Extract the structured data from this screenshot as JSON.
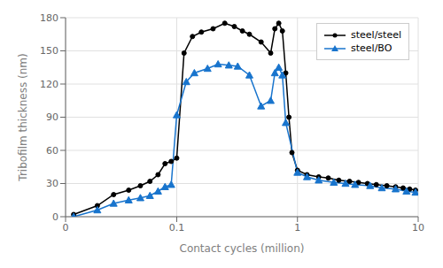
{
  "chart_data": {
    "type": "line",
    "xlabel": "Contact cycles (million)",
    "ylabel": "Tribofilm thickness (nm)",
    "log": "x",
    "grid": true,
    "legend": "upper right",
    "xlim": [
      0.012,
      10
    ],
    "ylim": [
      0,
      180
    ],
    "xticks": [
      {
        "value": 0.012,
        "label": "0"
      },
      0.1,
      1,
      10
    ],
    "yticks": [
      0,
      30,
      60,
      90,
      120,
      150,
      180
    ],
    "series": [
      {
        "name": "steel/steel",
        "color": "#000000",
        "marker": "circle",
        "x": [
          0.014,
          0.022,
          0.03,
          0.04,
          0.05,
          0.06,
          0.07,
          0.08,
          0.09,
          0.1,
          0.115,
          0.135,
          0.16,
          0.2,
          0.25,
          0.3,
          0.35,
          0.4,
          0.5,
          0.6,
          0.65,
          0.7,
          0.75,
          0.8,
          0.85,
          0.9,
          1.0,
          1.2,
          1.5,
          1.8,
          2.2,
          2.7,
          3.2,
          3.8,
          4.5,
          5.5,
          6.5,
          7.5,
          8.5,
          9.5
        ],
        "values": [
          2,
          10,
          20,
          24,
          28,
          32,
          38,
          48,
          50,
          53,
          148,
          163,
          167,
          170,
          175,
          172,
          168,
          165,
          158,
          148,
          170,
          175,
          168,
          130,
          90,
          58,
          42,
          38,
          36,
          35,
          33,
          32,
          31,
          30,
          29,
          28,
          27,
          26,
          25,
          24
        ]
      },
      {
        "name": "steel/BO",
        "color": "#1874CD",
        "marker": "triangle",
        "x": [
          0.014,
          0.022,
          0.03,
          0.04,
          0.05,
          0.06,
          0.07,
          0.08,
          0.09,
          0.1,
          0.12,
          0.14,
          0.18,
          0.22,
          0.27,
          0.32,
          0.4,
          0.5,
          0.6,
          0.65,
          0.7,
          0.75,
          0.8,
          1.0,
          1.2,
          1.5,
          2.0,
          2.5,
          3.0,
          4.0,
          5.0,
          6.5,
          8.0,
          9.5
        ],
        "values": [
          0,
          6,
          12,
          15,
          17,
          19,
          23,
          27,
          29,
          92,
          122,
          130,
          134,
          138,
          137,
          136,
          128,
          100,
          105,
          130,
          135,
          128,
          85,
          40,
          36,
          33,
          31,
          30,
          29,
          28,
          26,
          25,
          23,
          22
        ]
      }
    ]
  }
}
